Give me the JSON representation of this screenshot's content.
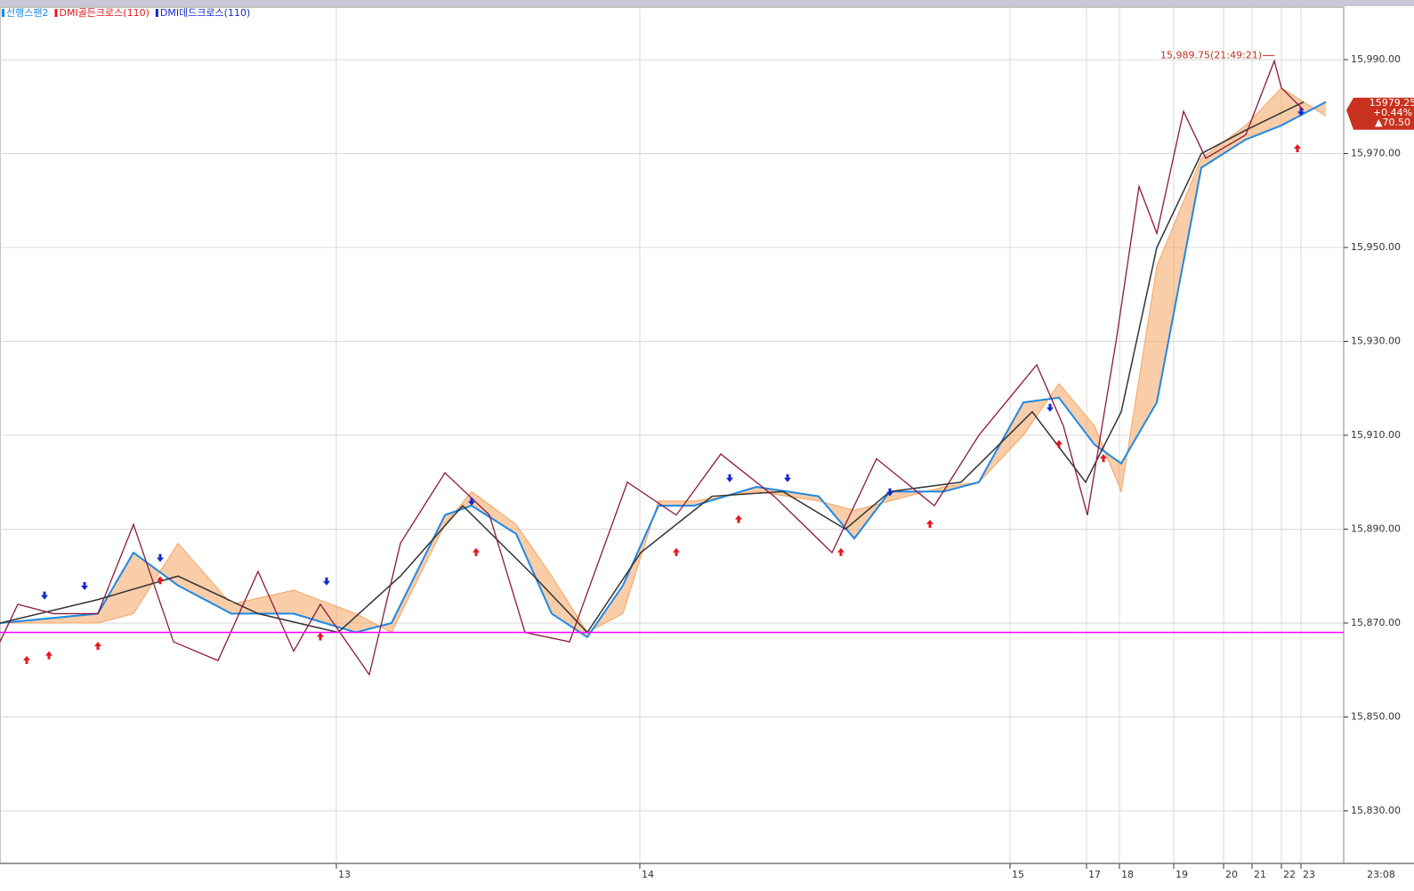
{
  "chart_data": {
    "type": "line",
    "annotation": "15,989.75(21:49:21)",
    "price_box": [
      "15979.25",
      "+0.44%",
      "▲70.50"
    ],
    "last_time_label": "23:08",
    "xlim": [
      0,
      1510
    ],
    "ylim": [
      15818.8,
      16001.2
    ],
    "xticks": [
      {
        "value": 378,
        "label": "13"
      },
      {
        "value": 719,
        "label": "14"
      },
      {
        "value": 1135,
        "label": "15"
      },
      {
        "value": 1221,
        "label": "17"
      },
      {
        "value": 1258,
        "label": "18"
      },
      {
        "value": 1319,
        "label": "19"
      },
      {
        "value": 1375,
        "label": "20"
      },
      {
        "value": 1407,
        "label": "21"
      },
      {
        "value": 1440,
        "label": "22"
      },
      {
        "value": 1462,
        "label": "23"
      }
    ],
    "yticks": [
      {
        "value": 15830,
        "label": "15,830.00"
      },
      {
        "value": 15850,
        "label": "15,850.00"
      },
      {
        "value": 15870,
        "label": "15,870.00"
      },
      {
        "value": 15890,
        "label": "15,890.00"
      },
      {
        "value": 15910,
        "label": "15,910.00"
      },
      {
        "value": 15930,
        "label": "15,930.00"
      },
      {
        "value": 15950,
        "label": "15,950.00"
      },
      {
        "value": 15970,
        "label": "15,970.00"
      },
      {
        "value": 15990,
        "label": "15,990.00"
      }
    ],
    "grid": true,
    "reference_line": {
      "value": 15868,
      "color": "#ff00ff"
    },
    "price": {
      "color": "#8b1a3a",
      "x": [
        0,
        20,
        60,
        110,
        150,
        195,
        245,
        290,
        330,
        360,
        415,
        450,
        500,
        550,
        590,
        640,
        705,
        760,
        810,
        870,
        935,
        985,
        1050,
        1100,
        1165,
        1195,
        1222,
        1255,
        1280,
        1300,
        1330,
        1355,
        1400,
        1432,
        1440,
        1465
      ],
      "values": [
        15866,
        15874,
        15872,
        15872,
        15891,
        15866,
        15862,
        15881,
        15864,
        15874,
        15859,
        15887,
        15902,
        15893,
        15868,
        15866,
        15900,
        15893,
        15906,
        15897,
        15885,
        15905,
        15895,
        15910,
        15925,
        15912,
        15893,
        15931,
        15963,
        15953,
        15979,
        15969,
        15974,
        15989.75,
        15984,
        15979.25
      ]
    },
    "base_line": {
      "color": "#333333",
      "x": [
        0,
        110,
        200,
        290,
        380,
        450,
        520,
        600,
        660,
        720,
        800,
        880,
        950,
        1000,
        1080,
        1160,
        1220,
        1260,
        1300,
        1350,
        1400,
        1465
      ],
      "values": [
        15870,
        15875,
        15880,
        15872,
        15868,
        15880,
        15895,
        15880,
        15868,
        15885,
        15897,
        15898,
        15890,
        15898,
        15900,
        15915,
        15900,
        15915,
        15950,
        15970,
        15975,
        15981
      ]
    },
    "cloud_x": [
      0,
      110,
      150,
      200,
      260,
      330,
      400,
      440,
      500,
      530,
      580,
      620,
      660,
      700,
      740,
      780,
      850,
      920,
      960,
      1000,
      1060,
      1100,
      1150,
      1190,
      1230,
      1260,
      1300,
      1350,
      1400,
      1440,
      1490
    ],
    "span_a": {
      "color": "#f4a460",
      "values": [
        15870,
        15870,
        15872,
        15887,
        15874,
        15877,
        15872,
        15868,
        15891,
        15898,
        15891,
        15880,
        15868,
        15872,
        15896,
        15896,
        15898,
        15896,
        15894,
        15896,
        15899,
        15900,
        15910,
        15921,
        15912,
        15898,
        15946,
        15969,
        15976,
        15984,
        15978
      ]
    },
    "span_b": {
      "name": "선행스팬2",
      "color": "#1e88e5",
      "values": [
        15870,
        15872,
        15885,
        15878,
        15872,
        15872,
        15868,
        15870,
        15893,
        15895,
        15889,
        15872,
        15867,
        15878,
        15895,
        15895,
        15899,
        15897,
        15888,
        15898,
        15898,
        15900,
        15917,
        15918,
        15908,
        15904,
        15917,
        15967,
        15973,
        15976,
        15981
      ]
    },
    "golden_cross": {
      "name": "DMI골든크로스(110)",
      "color": "#e8141e",
      "x": [
        30,
        55,
        110,
        180,
        360,
        535,
        760,
        830,
        945,
        1045,
        1190,
        1240,
        1458
      ],
      "values": [
        15863,
        15864,
        15866,
        15880,
        15868,
        15886,
        15886,
        15893,
        15886,
        15892,
        15909,
        15906,
        15972
      ]
    },
    "dead_cross": {
      "name": "DMI데드크로스(110)",
      "color": "#1428d2",
      "x": [
        50,
        95,
        180,
        367,
        530,
        820,
        885,
        1000,
        1180,
        1462
      ],
      "values": [
        15875,
        15877,
        15883,
        15878,
        15895,
        15900,
        15900,
        15897,
        15915,
        15978
      ]
    }
  }
}
